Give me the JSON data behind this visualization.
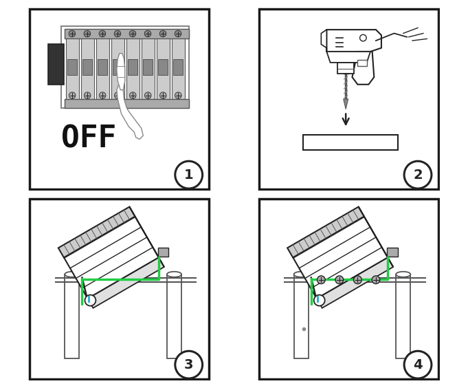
{
  "background_color": "#ffffff",
  "border_color": "#1a1a1a",
  "panel_bg": "#ffffff",
  "text_OFF_color": "#111111",
  "step_numbers": [
    "1",
    "2",
    "3",
    "4"
  ],
  "accent_green": "#22cc44",
  "accent_teal": "#22aacc",
  "dark": "#222222",
  "gray1": "#555555",
  "gray2": "#888888",
  "gray3": "#aaaaaa",
  "gray4": "#cccccc",
  "gray5": "#e0e0e0",
  "lw_thick": 2.0,
  "lw_med": 1.2,
  "lw_thin": 0.7
}
